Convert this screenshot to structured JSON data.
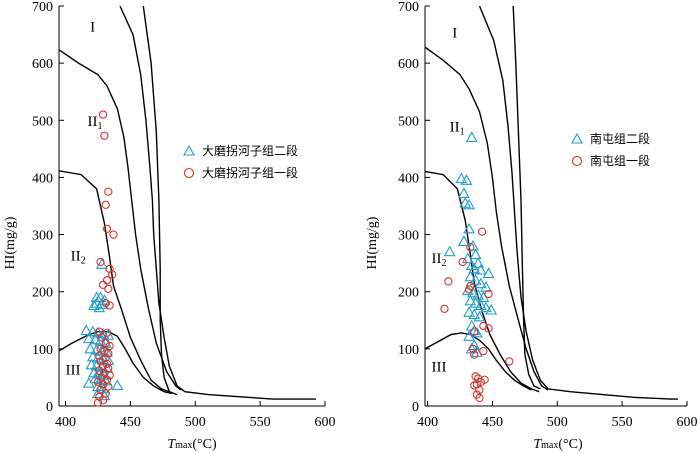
{
  "chart_data": [
    {
      "type": "scatter",
      "xlabel_main": "T",
      "xlabel_sub": "max",
      "xlabel_unit": "(°C)",
      "ylabel": "HI(mg/g)",
      "xlim": [
        395,
        600
      ],
      "ylim": [
        0,
        700
      ],
      "x_ticks": [
        400,
        450,
        500,
        550,
        600
      ],
      "y_ticks": [
        0,
        100,
        200,
        300,
        400,
        500,
        600,
        700
      ],
      "legend_position": "right",
      "zone_labels": [
        {
          "main": "I",
          "sub": "",
          "x": 419,
          "y": 655
        },
        {
          "main": "II",
          "sub": "1",
          "x": 417,
          "y": 490
        },
        {
          "main": "II",
          "sub": "2",
          "x": 404,
          "y": 255
        },
        {
          "main": "III",
          "sub": "",
          "x": 400,
          "y": 55
        }
      ],
      "boundaries": [
        [
          [
            394,
            625
          ],
          [
            410,
            600
          ],
          [
            425,
            580
          ],
          [
            432,
            560
          ],
          [
            440,
            520
          ],
          [
            445,
            470
          ],
          [
            448,
            420
          ],
          [
            451,
            360
          ],
          [
            454,
            300
          ],
          [
            458,
            240
          ],
          [
            464,
            170
          ],
          [
            470,
            110
          ],
          [
            478,
            60
          ],
          [
            485,
            35
          ],
          [
            489,
            28
          ]
        ],
        [
          [
            442,
            700
          ],
          [
            452,
            650
          ],
          [
            458,
            580
          ],
          [
            462,
            500
          ],
          [
            465,
            420
          ],
          [
            467,
            360
          ],
          [
            468,
            300
          ],
          [
            470,
            240
          ],
          [
            472,
            180
          ],
          [
            476,
            120
          ],
          [
            480,
            70
          ],
          [
            486,
            35
          ],
          [
            492,
            25
          ],
          [
            510,
            20
          ],
          [
            560,
            12
          ],
          [
            593,
            12
          ]
        ],
        [
          [
            460,
            700
          ],
          [
            466,
            600
          ],
          [
            470,
            480
          ],
          [
            472,
            360
          ],
          [
            473,
            240
          ],
          [
            473,
            150
          ],
          [
            474,
            90
          ],
          [
            476,
            50
          ],
          [
            480,
            25
          ],
          [
            486,
            20
          ]
        ],
        [
          [
            394,
            412
          ],
          [
            412,
            405
          ],
          [
            424,
            380
          ],
          [
            430,
            320
          ],
          [
            434,
            260
          ],
          [
            437,
            210
          ],
          [
            443,
            170
          ],
          [
            450,
            120
          ],
          [
            458,
            80
          ],
          [
            466,
            45
          ],
          [
            474,
            30
          ],
          [
            480,
            25
          ]
        ],
        [
          [
            394,
            95
          ],
          [
            405,
            110
          ],
          [
            418,
            125
          ],
          [
            425,
            130
          ],
          [
            433,
            130
          ],
          [
            440,
            122
          ],
          [
            446,
            100
          ],
          [
            452,
            75
          ],
          [
            460,
            50
          ],
          [
            468,
            35
          ],
          [
            476,
            25
          ],
          [
            482,
            22
          ]
        ]
      ],
      "series": [
        {
          "name": "大磨拐河子组二段",
          "marker": "triangle",
          "color": "#1f9fd0",
          "points": [
            [
              428,
              248
            ],
            [
              424,
              190
            ],
            [
              427,
              190
            ],
            [
              430,
              185
            ],
            [
              424,
              180
            ],
            [
              428,
              178
            ],
            [
              422,
              176
            ],
            [
              426,
              172
            ],
            [
              416,
              132
            ],
            [
              421,
              130
            ],
            [
              425,
              128
            ],
            [
              429,
              126
            ],
            [
              433,
              124
            ],
            [
              418,
              118
            ],
            [
              423,
              116
            ],
            [
              427,
              114
            ],
            [
              431,
              110
            ],
            [
              419,
              100
            ],
            [
              424,
              98
            ],
            [
              428,
              96
            ],
            [
              432,
              94
            ],
            [
              421,
              86
            ],
            [
              425,
              84
            ],
            [
              429,
              82
            ],
            [
              433,
              80
            ],
            [
              420,
              72
            ],
            [
              424,
              70
            ],
            [
              428,
              68
            ],
            [
              432,
              66
            ],
            [
              422,
              58
            ],
            [
              426,
              56
            ],
            [
              430,
              54
            ],
            [
              423,
              48
            ],
            [
              427,
              46
            ],
            [
              431,
              44
            ],
            [
              418,
              40
            ],
            [
              440,
              36
            ],
            [
              425,
              34
            ],
            [
              429,
              30
            ],
            [
              425,
              22
            ],
            [
              430,
              18
            ]
          ]
        },
        {
          "name": "大磨拐河子组一段",
          "marker": "circle",
          "color": "#d9342b",
          "points": [
            [
              429,
              510
            ],
            [
              430,
              473
            ],
            [
              433,
              375
            ],
            [
              431,
              352
            ],
            [
              432,
              310
            ],
            [
              437,
              300
            ],
            [
              427,
              252
            ],
            [
              434,
              240
            ],
            [
              436,
              230
            ],
            [
              432,
              220
            ],
            [
              429,
              212
            ],
            [
              433,
              205
            ],
            [
              431,
              180
            ],
            [
              434,
              176
            ],
            [
              426,
              130
            ],
            [
              432,
              128
            ],
            [
              428,
              120
            ],
            [
              431,
              110
            ],
            [
              434,
              105
            ],
            [
              427,
              100
            ],
            [
              430,
              96
            ],
            [
              433,
              92
            ],
            [
              426,
              88
            ],
            [
              431,
              84
            ],
            [
              427,
              78
            ],
            [
              432,
              74
            ],
            [
              429,
              70
            ],
            [
              433,
              66
            ],
            [
              426,
              62
            ],
            [
              430,
              58
            ],
            [
              434,
              54
            ],
            [
              428,
              50
            ],
            [
              432,
              46
            ],
            [
              425,
              42
            ],
            [
              429,
              38
            ],
            [
              433,
              34
            ],
            [
              427,
              28
            ],
            [
              431,
              22
            ],
            [
              426,
              16
            ],
            [
              429,
              10
            ],
            [
              425,
              6
            ]
          ]
        }
      ]
    },
    {
      "type": "scatter",
      "xlabel_main": "T",
      "xlabel_sub": "max",
      "xlabel_unit": "(°C)",
      "ylabel": "HI(mg/g)",
      "xlim": [
        398,
        600
      ],
      "ylim": [
        0,
        700
      ],
      "x_ticks": [
        400,
        450,
        500,
        550,
        600
      ],
      "y_ticks": [
        0,
        100,
        200,
        300,
        400,
        500,
        600,
        700
      ],
      "legend_position": "right",
      "zone_labels": [
        {
          "main": "I",
          "sub": "",
          "x": 419,
          "y": 645
        },
        {
          "main": "II",
          "sub": "1",
          "x": 417,
          "y": 480
        },
        {
          "main": "II",
          "sub": "2",
          "x": 403,
          "y": 250
        },
        {
          "main": "III",
          "sub": "",
          "x": 403,
          "y": 60
        }
      ],
      "boundaries": [
        [
          [
            398,
            628
          ],
          [
            412,
            605
          ],
          [
            425,
            580
          ],
          [
            432,
            555
          ],
          [
            440,
            515
          ],
          [
            446,
            460
          ],
          [
            450,
            400
          ],
          [
            453,
            340
          ],
          [
            457,
            280
          ],
          [
            463,
            210
          ],
          [
            470,
            150
          ],
          [
            476,
            100
          ],
          [
            482,
            60
          ],
          [
            488,
            35
          ],
          [
            493,
            28
          ]
        ],
        [
          [
            440,
            700
          ],
          [
            451,
            640
          ],
          [
            458,
            570
          ],
          [
            462,
            490
          ],
          [
            465,
            410
          ],
          [
            467,
            340
          ],
          [
            469,
            270
          ],
          [
            472,
            190
          ],
          [
            476,
            130
          ],
          [
            481,
            80
          ],
          [
            487,
            45
          ],
          [
            493,
            30
          ],
          [
            510,
            25
          ],
          [
            560,
            15
          ],
          [
            588,
            12
          ],
          [
            593,
            12
          ]
        ],
        [
          [
            466,
            700
          ],
          [
            468,
            600
          ],
          [
            470,
            480
          ],
          [
            472,
            360
          ],
          [
            473,
            250
          ],
          [
            474,
            150
          ],
          [
            475,
            90
          ],
          [
            478,
            55
          ],
          [
            482,
            35
          ],
          [
            487,
            30
          ]
        ],
        [
          [
            394,
            412
          ],
          [
            412,
            405
          ],
          [
            423,
            380
          ],
          [
            429,
            325
          ],
          [
            433,
            265
          ],
          [
            436,
            215
          ],
          [
            442,
            165
          ],
          [
            448,
            125
          ],
          [
            456,
            90
          ],
          [
            464,
            60
          ],
          [
            472,
            40
          ],
          [
            480,
            30
          ],
          [
            486,
            25
          ]
        ],
        [
          [
            394,
            95
          ],
          [
            406,
            110
          ],
          [
            418,
            125
          ],
          [
            426,
            128
          ],
          [
            433,
            125
          ],
          [
            440,
            115
          ],
          [
            447,
            100
          ],
          [
            453,
            80
          ],
          [
            460,
            60
          ],
          [
            467,
            45
          ],
          [
            474,
            35
          ],
          [
            480,
            28
          ]
        ]
      ],
      "series": [
        {
          "name": "南屯组二段",
          "marker": "triangle",
          "color": "#1f9fd0",
          "points": [
            [
              434,
              470
            ],
            [
              426,
              398
            ],
            [
              430,
              395
            ],
            [
              428,
              372
            ],
            [
              429,
              355
            ],
            [
              432,
              352
            ],
            [
              432,
              310
            ],
            [
              428,
              288
            ],
            [
              435,
              280
            ],
            [
              417,
              270
            ],
            [
              437,
              265
            ],
            [
              431,
              258
            ],
            [
              439,
              250
            ],
            [
              434,
              246
            ],
            [
              436,
              240
            ],
            [
              441,
              238
            ],
            [
              447,
              232
            ],
            [
              433,
              226
            ],
            [
              437,
              220
            ],
            [
              441,
              214
            ],
            [
              445,
              208
            ],
            [
              431,
              202
            ],
            [
              435,
              198
            ],
            [
              439,
              194
            ],
            [
              443,
              190
            ],
            [
              433,
              184
            ],
            [
              437,
              180
            ],
            [
              441,
              176
            ],
            [
              445,
              172
            ],
            [
              449,
              168
            ],
            [
              432,
              164
            ],
            [
              436,
              160
            ],
            [
              440,
              156
            ],
            [
              434,
              140
            ],
            [
              436,
              132
            ],
            [
              438,
              128
            ],
            [
              432,
              122
            ],
            [
              436,
              106
            ],
            [
              434,
              100
            ],
            [
              438,
              94
            ]
          ]
        },
        {
          "name": "南屯组一段",
          "marker": "circle",
          "color": "#d9342b",
          "points": [
            [
              442,
              305
            ],
            [
              433,
              278
            ],
            [
              427,
              252
            ],
            [
              416,
              218
            ],
            [
              433,
              210
            ],
            [
              432,
              204
            ],
            [
              447,
              196
            ],
            [
              413,
              170
            ],
            [
              443,
              140
            ],
            [
              447,
              136
            ],
            [
              436,
              130
            ],
            [
              435,
              100
            ],
            [
              443,
              96
            ],
            [
              436,
              90
            ],
            [
              463,
              78
            ],
            [
              437,
              52
            ],
            [
              439,
              48
            ],
            [
              444,
              46
            ],
            [
              441,
              42
            ],
            [
              438,
              38
            ],
            [
              436,
              36
            ],
            [
              440,
              28
            ],
            [
              438,
              20
            ],
            [
              440,
              14
            ]
          ]
        }
      ]
    }
  ]
}
